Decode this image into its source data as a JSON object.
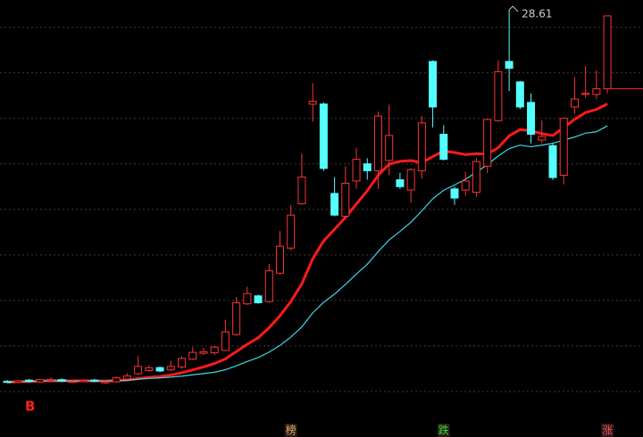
{
  "chart_data": {
    "type": "candlestick",
    "ylim": [
      10,
      29.2
    ],
    "yticks": [
      12,
      14,
      16,
      18,
      20,
      22,
      24,
      26,
      28
    ],
    "grid": true,
    "up_color": "#ff3232",
    "down_color": "#54ffff",
    "open": [
      12.45,
      12.4,
      12.5,
      12.42,
      12.48,
      12.52,
      12.4,
      12.43,
      12.5,
      12.38,
      12.42,
      12.55,
      12.78,
      12.92,
      13.05,
      12.95,
      13.08,
      13.42,
      13.68,
      13.7,
      13.8,
      14.5,
      15.85,
      16.2,
      15.95,
      17.2,
      18.3,
      20.25,
      24.62,
      24.63,
      20.7,
      19.7,
      21.25,
      22.0,
      21.7,
      22.15,
      21.3,
      20.85,
      21.7,
      26.5,
      23.3,
      20.9,
      20.85,
      20.75,
      21.9,
      23.9,
      26.5,
      25.6,
      24.7,
      23.05,
      22.8,
      21.5,
      24.5,
      25.05,
      25.05,
      25.3
    ],
    "high": [
      12.5,
      12.52,
      12.55,
      12.56,
      12.62,
      12.58,
      12.48,
      12.53,
      12.56,
      12.46,
      12.66,
      12.8,
      13.55,
      13.15,
      13.1,
      13.35,
      13.55,
      13.95,
      13.92,
      14.0,
      15.15,
      16.15,
      16.6,
      16.25,
      17.6,
      19.05,
      20.2,
      22.45,
      25.55,
      24.7,
      21.42,
      21.9,
      22.7,
      22.25,
      24.3,
      24.6,
      21.6,
      21.8,
      24.1,
      26.55,
      23.7,
      21.0,
      21.65,
      22.25,
      24.0,
      26.55,
      28.61,
      25.65,
      25.1,
      23.9,
      22.9,
      24.0,
      25.8,
      26.3,
      26.1,
      28.5
    ],
    "low": [
      12.38,
      12.36,
      12.4,
      12.4,
      12.44,
      12.42,
      12.37,
      12.4,
      12.4,
      12.33,
      12.38,
      12.5,
      12.72,
      12.88,
      12.85,
      12.9,
      13.0,
      13.38,
      13.6,
      13.6,
      13.78,
      14.45,
      15.8,
      15.85,
      15.9,
      17.15,
      18.2,
      20.2,
      23.85,
      21.7,
      19.7,
      19.6,
      20.9,
      21.3,
      20.9,
      21.5,
      20.9,
      20.3,
      21.35,
      23.6,
      22.15,
      20.2,
      20.6,
      20.55,
      21.6,
      23.85,
      25.2,
      24.4,
      22.9,
      22.9,
      21.3,
      21.1,
      24.2,
      24.9,
      24.85,
      25.1
    ],
    "close": [
      12.4,
      12.47,
      12.44,
      12.52,
      12.53,
      12.45,
      12.44,
      12.48,
      12.45,
      12.43,
      12.6,
      12.68,
      13.1,
      13.04,
      12.9,
      13.1,
      13.45,
      13.72,
      13.75,
      13.95,
      14.62,
      15.9,
      16.3,
      15.9,
      17.3,
      18.38,
      19.75,
      21.42,
      24.75,
      21.8,
      19.75,
      21.15,
      22.2,
      21.7,
      24.1,
      23.25,
      21.0,
      21.75,
      23.8,
      24.5,
      22.2,
      20.5,
      21.25,
      22.1,
      23.95,
      26.05,
      26.2,
      24.5,
      23.3,
      23.2,
      21.4,
      24.0,
      24.85,
      25.1,
      25.3,
      28.5
    ],
    "moving_averages": [
      {
        "period": 10,
        "color": "#ff1a1a"
      },
      {
        "period": 20,
        "color": "#3fd8e8"
      }
    ],
    "signal": "B",
    "markers": [
      {
        "index": 26,
        "label": "榜",
        "color": "#e0b060"
      },
      {
        "index": 40,
        "label": "跌",
        "color": "#30e030"
      },
      {
        "index": 55,
        "label": "涨",
        "color": "#ff5050"
      }
    ]
  }
}
